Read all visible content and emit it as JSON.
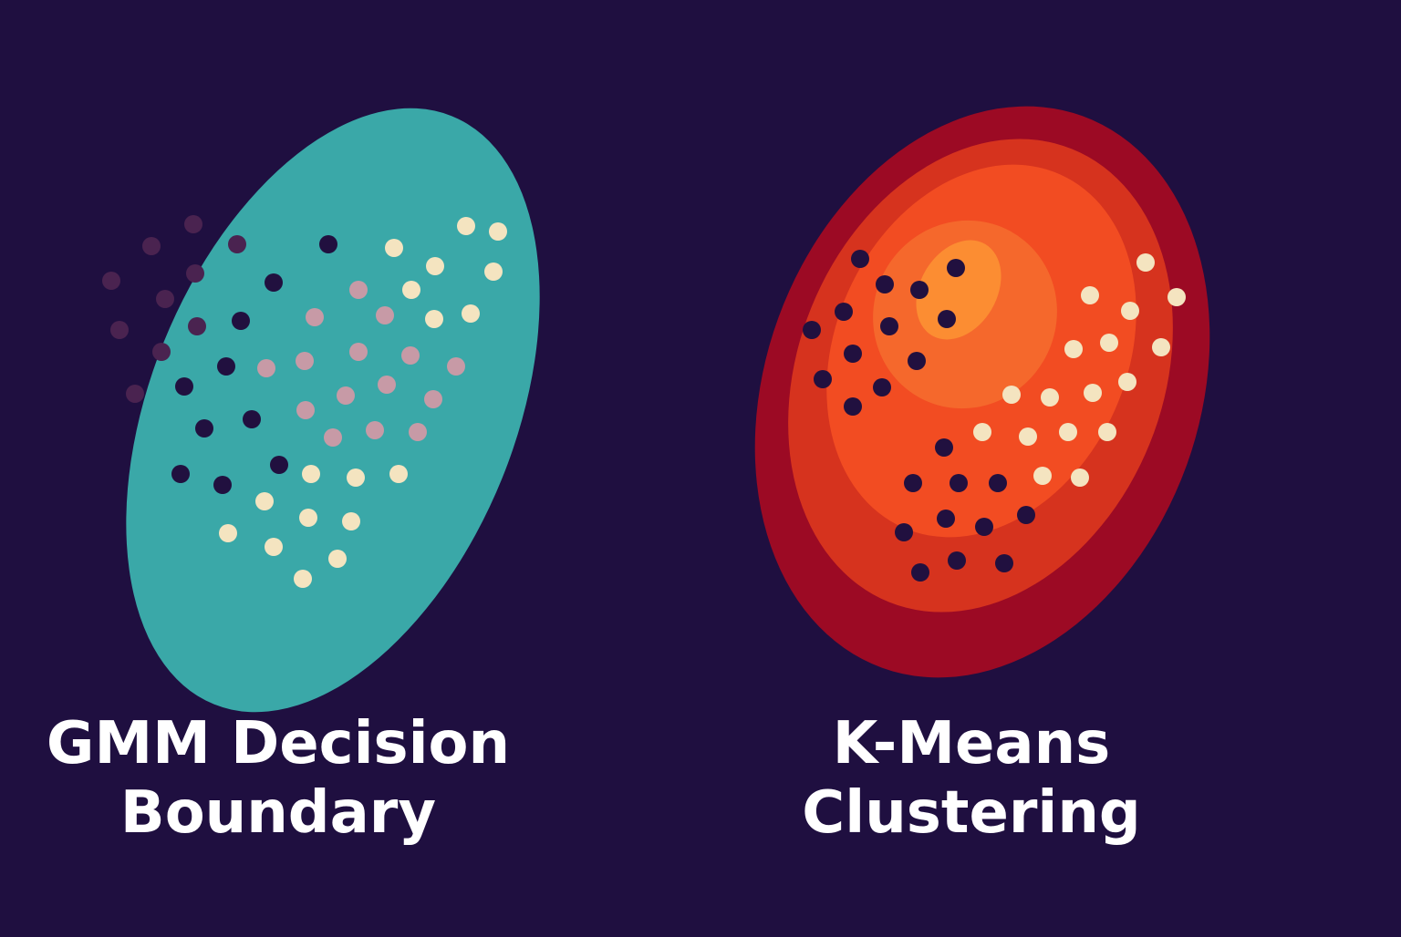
{
  "colors": {
    "background": "#1f0f40",
    "gmm_ellipse": "#3aa8a8",
    "kmeans_rings": [
      "#9c0a24",
      "#d6331e",
      "#f24c22",
      "#f5682c",
      "#fc8d32"
    ],
    "point_dark": "#21103f",
    "point_light": "#f4e4c0",
    "point_mauve": "#c79aa6",
    "point_faded": "#4a2350"
  },
  "left_panel": {
    "caption_line1": "GMM Decision",
    "caption_line2": "Boundary"
  },
  "right_panel": {
    "caption_line1": "K-Means",
    "caption_line2": "Clustering"
  }
}
